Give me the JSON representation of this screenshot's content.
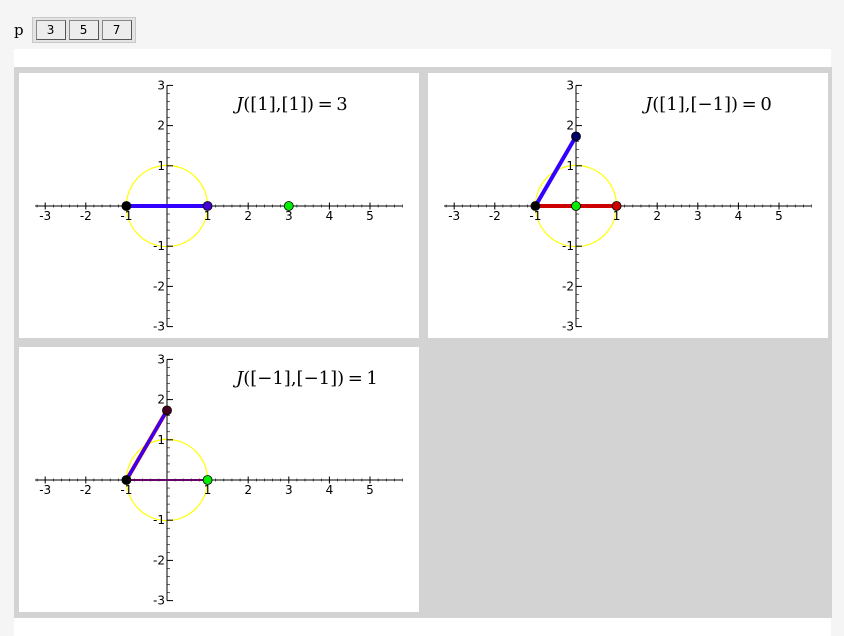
{
  "controls": {
    "label": "p",
    "buttons": [
      "3",
      "5",
      "7"
    ]
  },
  "colors": {
    "circle": "#ffff00",
    "segment_base": "#cc0000",
    "segment_top": "#3300ff",
    "point_dark": "#000000",
    "point_green": "#00ee00",
    "panel_bg": "#d3d3d3"
  },
  "chart_data": [
    {
      "type": "line",
      "title": "J([1],[1]) = 3",
      "title_parts": {
        "J": "J",
        "rest": "([1],[1]) = 3"
      },
      "x_ticks": [
        -3,
        -2,
        -1,
        1,
        2,
        3,
        4,
        5
      ],
      "y_ticks": [
        -3,
        -2,
        -1,
        1,
        2,
        3
      ],
      "xlim": [
        -3.2,
        5.8
      ],
      "ylim": [
        -3,
        3
      ],
      "circle": {
        "center": [
          0,
          0
        ],
        "radius": 1
      },
      "segments": [
        {
          "from": [
            -1,
            0
          ],
          "to": [
            1,
            0
          ],
          "color": "#cc0000",
          "width": 4
        },
        {
          "from": [
            -1,
            0
          ],
          "to": [
            1,
            0
          ],
          "color": "#3300ff",
          "width": 4
        }
      ],
      "points": [
        {
          "x": -1,
          "y": 0,
          "color": "#000000"
        },
        {
          "x": 1,
          "y": 0,
          "color": "#4400cc"
        },
        {
          "x": 3,
          "y": 0,
          "color": "#00ee00"
        }
      ]
    },
    {
      "type": "line",
      "title": "J([1],[−1]) = 0",
      "title_parts": {
        "J": "J",
        "rest": "([1],[−1]) = 0"
      },
      "x_ticks": [
        -3,
        -2,
        -1,
        1,
        2,
        3,
        4,
        5
      ],
      "y_ticks": [
        -3,
        -2,
        -1,
        1,
        2,
        3
      ],
      "xlim": [
        -3.2,
        5.8
      ],
      "ylim": [
        -3,
        3
      ],
      "circle": {
        "center": [
          0,
          0
        ],
        "radius": 1
      },
      "segments": [
        {
          "from": [
            -1,
            0
          ],
          "to": [
            1,
            0
          ],
          "color": "#cc0000",
          "width": 4
        },
        {
          "from": [
            -1,
            0
          ],
          "to": [
            0,
            1.732
          ],
          "color": "#3300ff",
          "width": 4
        }
      ],
      "points": [
        {
          "x": -1,
          "y": 0,
          "color": "#000000"
        },
        {
          "x": 1,
          "y": 0,
          "color": "#cc0000"
        },
        {
          "x": 0,
          "y": 1.732,
          "color": "#000066"
        },
        {
          "x": 0,
          "y": 0,
          "color": "#00ee00"
        }
      ]
    },
    {
      "type": "line",
      "title": "J([−1],[−1]) = 1",
      "title_parts": {
        "J": "J",
        "rest": "([−1],[−1]) = 1"
      },
      "x_ticks": [
        -3,
        -2,
        -1,
        1,
        2,
        3,
        4,
        5
      ],
      "y_ticks": [
        -3,
        -2,
        -1,
        1,
        2,
        3
      ],
      "xlim": [
        -3.2,
        5.8
      ],
      "ylim": [
        -3,
        3
      ],
      "circle": {
        "center": [
          0,
          0
        ],
        "radius": 1
      },
      "segments": [
        {
          "from": [
            -1,
            0
          ],
          "to": [
            1,
            0
          ],
          "color": "#660066",
          "width": 2
        },
        {
          "from": [
            -1,
            0
          ],
          "to": [
            0,
            1.732
          ],
          "color": "#cc0000",
          "width": 4
        },
        {
          "from": [
            -1,
            0
          ],
          "to": [
            0,
            1.732
          ],
          "color": "#3300ff",
          "width": 3
        }
      ],
      "points": [
        {
          "x": -1,
          "y": 0,
          "color": "#000000"
        },
        {
          "x": 0,
          "y": 1.732,
          "color": "#440022"
        },
        {
          "x": 1,
          "y": 0,
          "color": "#00ee00"
        }
      ]
    }
  ]
}
